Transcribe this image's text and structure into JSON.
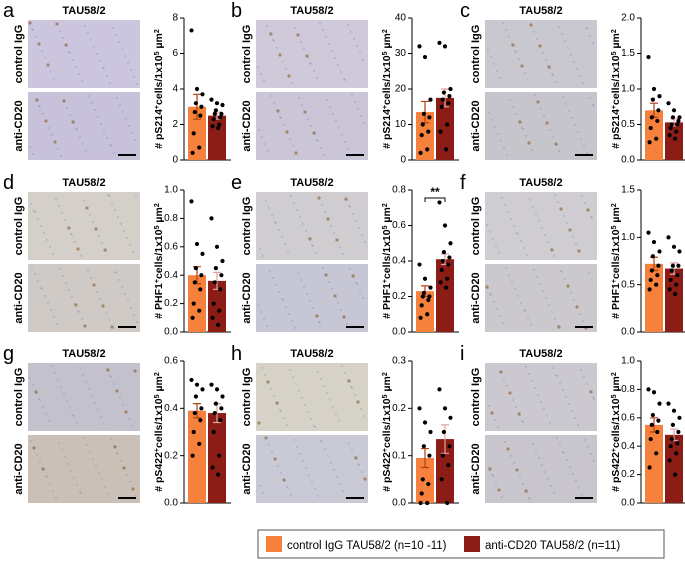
{
  "legend": {
    "entries": [
      {
        "name": "control IgG TAU58/2 (n=10 -11)",
        "color": "#f5813c"
      },
      {
        "name": "anti-CD20 TAU58/2 (n=11)",
        "color": "#8b1c16"
      }
    ]
  },
  "chart_data": [
    {
      "type": "bar",
      "panel": "a",
      "title": "TAU58/2",
      "image_labels": [
        "control IgG",
        "anti-CD20"
      ],
      "ylabel": [
        "# pS214",
        "+",
        "cells/1x10",
        "5",
        " µm",
        "2"
      ],
      "ylim": [
        0,
        8
      ],
      "yticks": [
        0,
        2,
        4,
        6,
        8
      ],
      "values": [
        3.0,
        2.5
      ],
      "errors": [
        0.7,
        0.2
      ],
      "points": [
        [
          7.3,
          4.0,
          3.7,
          3.2,
          3.0,
          2.7,
          2.5,
          1.5,
          0.7,
          0.4
        ],
        [
          3.4,
          3.2,
          3.1,
          2.8,
          2.6,
          2.6,
          2.4,
          2.3,
          2.0,
          1.9,
          1.8
        ]
      ]
    },
    {
      "type": "bar",
      "panel": "b",
      "title": "TAU58/2",
      "image_labels": [
        "control IgG",
        "anti-CD20"
      ],
      "ylabel": [
        "# pS214",
        "+",
        "cells/1x10",
        "5",
        " µm",
        "2"
      ],
      "ylim": [
        0,
        40
      ],
      "yticks": [
        0,
        10,
        20,
        30,
        40
      ],
      "values": [
        13.5,
        17.5
      ],
      "errors": [
        3,
        2.5
      ],
      "points": [
        [
          32,
          29,
          17,
          13,
          12,
          10,
          8,
          7,
          3,
          2
        ],
        [
          33,
          32,
          20,
          19,
          18,
          17,
          16,
          15,
          10,
          8,
          3
        ]
      ]
    },
    {
      "type": "bar",
      "panel": "c",
      "title": "TAU58/2",
      "image_labels": [
        "control IgG",
        "anti-CD20"
      ],
      "ylabel": [
        "# pS214",
        "+",
        "cells/1x10",
        "5",
        " µm",
        "2"
      ],
      "ylim": [
        0,
        2.0
      ],
      "yticks": [
        {
          "value": 0,
          "label": "0.0"
        },
        {
          "value": 0.5,
          "label": "0.5"
        },
        {
          "value": 1,
          "label": "1.0"
        },
        {
          "value": 1.5,
          "label": "1.5"
        },
        {
          "value": 2,
          "label": "2.0"
        }
      ],
      "values": [
        0.7,
        0.53
      ],
      "errors": [
        0.1,
        0.05
      ],
      "points": [
        [
          1.45,
          1.0,
          0.9,
          0.85,
          0.7,
          0.6,
          0.55,
          0.45,
          0.3,
          0.25
        ],
        [
          0.8,
          0.7,
          0.6,
          0.6,
          0.55,
          0.5,
          0.5,
          0.45,
          0.4,
          0.35,
          0.3
        ]
      ]
    },
    {
      "type": "bar",
      "panel": "d",
      "title": "TAU58/2",
      "image_labels": [
        "control IgG",
        "anti-CD20"
      ],
      "ylabel": [
        "# PHF1",
        "+",
        "cells/1x10",
        "5",
        " µm",
        "2"
      ],
      "ylim": [
        0,
        1.0
      ],
      "yticks": [
        {
          "value": 0,
          "label": "0.0"
        },
        0.2,
        0.4,
        0.6,
        0.8,
        {
          "value": 1,
          "label": "1.0"
        }
      ],
      "values": [
        0.4,
        0.36
      ],
      "errors": [
        0.06,
        0.06
      ],
      "points": [
        [
          0.92,
          0.62,
          0.55,
          0.45,
          0.4,
          0.35,
          0.3,
          0.2,
          0.15,
          0.1
        ],
        [
          0.8,
          0.6,
          0.5,
          0.45,
          0.4,
          0.35,
          0.3,
          0.2,
          0.15,
          0.1,
          0.05
        ]
      ]
    },
    {
      "type": "bar",
      "panel": "e",
      "title": "TAU58/2",
      "image_labels": [
        "control IgG",
        "anti-CD20"
      ],
      "ylabel": [
        "# PHF1",
        "+",
        "cells/1x10",
        "5",
        " µm",
        "2"
      ],
      "ylim": [
        0,
        0.8
      ],
      "yticks": [
        {
          "value": 0,
          "label": "0.0"
        },
        0.2,
        0.4,
        0.6,
        0.8
      ],
      "values": [
        0.23,
        0.41
      ],
      "errors": [
        0.03,
        0.03
      ],
      "annotation": "**",
      "points": [
        [
          0.38,
          0.3,
          0.25,
          0.22,
          0.2,
          0.2,
          0.18,
          0.15,
          0.1,
          0.08
        ],
        [
          0.73,
          0.6,
          0.5,
          0.45,
          0.42,
          0.4,
          0.38,
          0.35,
          0.3,
          0.28,
          0.25
        ]
      ]
    },
    {
      "type": "bar",
      "panel": "f",
      "title": "TAU58/2",
      "image_labels": [
        "control IgG",
        "anti-CD20"
      ],
      "ylabel": [
        "# PHF1",
        "+",
        "cells/1x10",
        "5",
        " µm",
        "2"
      ],
      "ylim": [
        0,
        1.5
      ],
      "yticks": [
        {
          "value": 0,
          "label": "0.0"
        },
        0.5,
        {
          "value": 1,
          "label": "1.0"
        },
        1.5
      ],
      "values": [
        0.72,
        0.67
      ],
      "errors": [
        0.07,
        0.06
      ],
      "points": [
        [
          1.05,
          0.95,
          0.85,
          0.8,
          0.7,
          0.65,
          0.6,
          0.55,
          0.5,
          0.45
        ],
        [
          1.0,
          0.9,
          0.85,
          0.7,
          0.7,
          0.65,
          0.6,
          0.55,
          0.5,
          0.45,
          0.4
        ]
      ]
    },
    {
      "type": "bar",
      "panel": "g",
      "title": "TAU58/2",
      "image_labels": [
        "control IgG",
        "anti-CD20"
      ],
      "ylabel": [
        "# pS422",
        "+",
        "cells/1x10",
        "5",
        " µm",
        "2"
      ],
      "ylim": [
        0,
        0.6
      ],
      "yticks": [
        {
          "value": 0,
          "label": "0.0"
        },
        0.2,
        0.4,
        0.6
      ],
      "values": [
        0.39,
        0.38
      ],
      "errors": [
        0.03,
        0.04
      ],
      "points": [
        [
          0.52,
          0.5,
          0.48,
          0.45,
          0.4,
          0.38,
          0.35,
          0.3,
          0.25,
          0.2
        ],
        [
          0.5,
          0.48,
          0.45,
          0.42,
          0.4,
          0.38,
          0.35,
          0.3,
          0.2,
          0.15,
          0.12
        ]
      ]
    },
    {
      "type": "bar",
      "panel": "h",
      "title": "TAU58/2",
      "image_labels": [
        "control IgG",
        "anti-CD20"
      ],
      "ylabel": [
        "# pS422",
        "+",
        "cells/1x10",
        "5",
        " µm",
        "2"
      ],
      "ylim": [
        0,
        0.3
      ],
      "yticks": [
        {
          "value": 0,
          "label": "0.0"
        },
        0.1,
        0.2,
        0.3
      ],
      "values": [
        0.095,
        0.135
      ],
      "errors": [
        0.02,
        0.03
      ],
      "points": [
        [
          0.2,
          0.17,
          0.15,
          0.12,
          0.1,
          0.05,
          0.04,
          0.02,
          0,
          0
        ],
        [
          0.24,
          0.2,
          0.18,
          0.15,
          0.12,
          0.1,
          0.08,
          0.05,
          0
        ]
      ]
    },
    {
      "type": "bar",
      "panel": "i",
      "title": "TAU58/2",
      "image_labels": [
        "control IgG",
        "anti-CD20"
      ],
      "ylabel": [
        "# pS422",
        "+",
        "cells/1x10",
        "5",
        " µm",
        "2"
      ],
      "ylim": [
        0,
        1.0
      ],
      "yticks": [
        {
          "value": 0,
          "label": "0.0"
        },
        0.2,
        0.4,
        0.6,
        0.8,
        {
          "value": 1,
          "label": "1.0"
        }
      ],
      "values": [
        0.55,
        0.48
      ],
      "errors": [
        0.05,
        0.04
      ],
      "points": [
        [
          0.8,
          0.78,
          0.7,
          0.62,
          0.58,
          0.55,
          0.5,
          0.45,
          0.35,
          0.25
        ],
        [
          0.7,
          0.65,
          0.6,
          0.55,
          0.5,
          0.45,
          0.42,
          0.4,
          0.35,
          0.3,
          0.2
        ]
      ]
    }
  ]
}
